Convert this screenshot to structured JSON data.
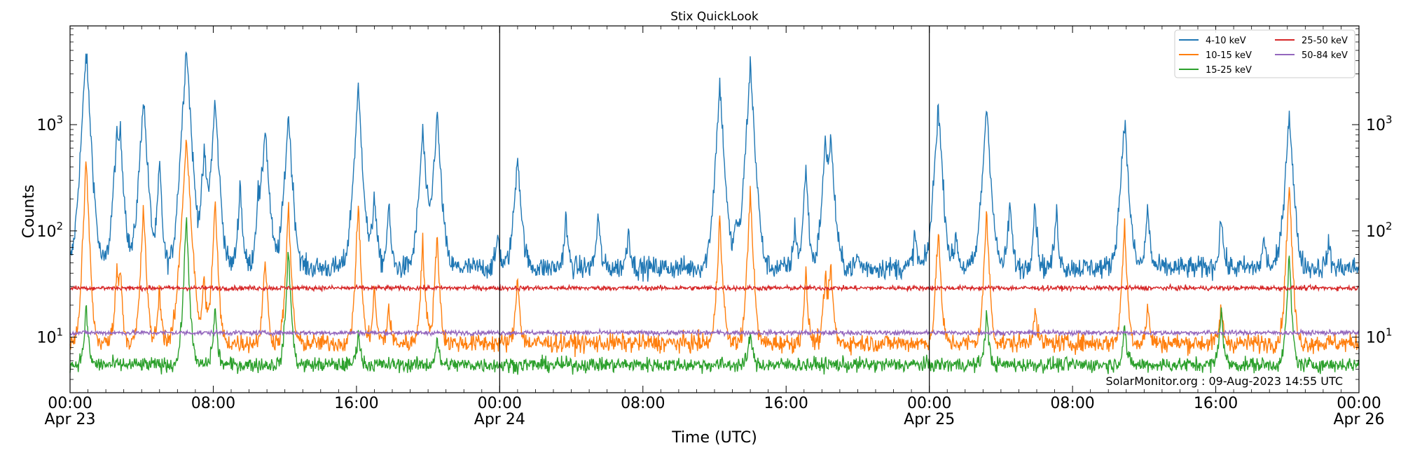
{
  "chart_data": {
    "type": "line",
    "title": "Stix QuickLook",
    "xlabel": "Time (UTC)",
    "ylabel": "Counts",
    "yscale": "log",
    "ylim": [
      3,
      8500
    ],
    "xlim_hours": [
      0,
      72
    ],
    "y_ticks": [
      {
        "value": 10,
        "base": "10",
        "exp": "1"
      },
      {
        "value": 100,
        "base": "10",
        "exp": "2"
      },
      {
        "value": 1000,
        "base": "10",
        "exp": "3"
      }
    ],
    "x_ticks": [
      {
        "hour": 0,
        "time": "00:00",
        "date": "Apr 23"
      },
      {
        "hour": 8,
        "time": "08:00",
        "date": ""
      },
      {
        "hour": 16,
        "time": "16:00",
        "date": ""
      },
      {
        "hour": 24,
        "time": "00:00",
        "date": "Apr 24"
      },
      {
        "hour": 32,
        "time": "08:00",
        "date": ""
      },
      {
        "hour": 40,
        "time": "16:00",
        "date": ""
      },
      {
        "hour": 48,
        "time": "00:00",
        "date": "Apr 25"
      },
      {
        "hour": 56,
        "time": "08:00",
        "date": ""
      },
      {
        "hour": 64,
        "time": "16:00",
        "date": ""
      },
      {
        "hour": 72,
        "time": "00:00",
        "date": "Apr 26"
      }
    ],
    "day_boundaries": [
      24,
      48
    ],
    "annotation": "SolarMonitor.org : 09-Aug-2023 14:55 UTC",
    "legend_position": "top-right",
    "series": [
      {
        "name": "4-10 keV",
        "color": "#1f77b4",
        "baseline": 45,
        "noise": 0.12,
        "peaks": [
          [
            0.9,
            5000
          ],
          [
            2.6,
            600
          ],
          [
            2.8,
            800
          ],
          [
            4.1,
            1900
          ],
          [
            5.0,
            450
          ],
          [
            6.5,
            5800
          ],
          [
            7.5,
            550
          ],
          [
            8.1,
            1700
          ],
          [
            9.5,
            300
          ],
          [
            10.5,
            200
          ],
          [
            10.9,
            1000
          ],
          [
            12.2,
            1300
          ],
          [
            16.1,
            2200
          ],
          [
            17.0,
            250
          ],
          [
            17.8,
            180
          ],
          [
            19.7,
            900
          ],
          [
            20.5,
            1300
          ],
          [
            23.9,
            100
          ],
          [
            25.0,
            550
          ],
          [
            27.7,
            140
          ],
          [
            29.5,
            150
          ],
          [
            31.2,
            110
          ],
          [
            36.3,
            2500
          ],
          [
            37.2,
            130
          ],
          [
            38.0,
            3800
          ],
          [
            40.5,
            120
          ],
          [
            41.1,
            450
          ],
          [
            42.2,
            650
          ],
          [
            42.5,
            700
          ],
          [
            44.0,
            60
          ],
          [
            47.2,
            100
          ],
          [
            48.5,
            1600
          ],
          [
            49.5,
            100
          ],
          [
            51.2,
            1600
          ],
          [
            52.5,
            200
          ],
          [
            53.9,
            200
          ],
          [
            55.1,
            160
          ],
          [
            58.9,
            1200
          ],
          [
            60.2,
            180
          ],
          [
            64.3,
            150
          ],
          [
            66.7,
            90
          ],
          [
            68.1,
            1400
          ],
          [
            70.3,
            80
          ]
        ]
      },
      {
        "name": "10-15 keV",
        "color": "#ff7f0e",
        "baseline": 8.8,
        "noise": 0.1,
        "peaks": [
          [
            0.9,
            480
          ],
          [
            2.6,
            40
          ],
          [
            2.8,
            45
          ],
          [
            4.1,
            180
          ],
          [
            5.0,
            30
          ],
          [
            6.5,
            800
          ],
          [
            7.5,
            40
          ],
          [
            8.1,
            200
          ],
          [
            10.9,
            60
          ],
          [
            12.2,
            170
          ],
          [
            16.1,
            180
          ],
          [
            17.0,
            30
          ],
          [
            17.8,
            20
          ],
          [
            19.7,
            80
          ],
          [
            20.5,
            100
          ],
          [
            25.0,
            40
          ],
          [
            36.3,
            150
          ],
          [
            38.0,
            260
          ],
          [
            41.1,
            40
          ],
          [
            42.2,
            40
          ],
          [
            42.5,
            50
          ],
          [
            48.5,
            110
          ],
          [
            51.2,
            160
          ],
          [
            53.9,
            20
          ],
          [
            58.9,
            120
          ],
          [
            60.2,
            20
          ],
          [
            64.3,
            20
          ],
          [
            68.1,
            300
          ]
        ]
      },
      {
        "name": "15-25 keV",
        "color": "#2ca02c",
        "baseline": 5.5,
        "noise": 0.08,
        "peaks": [
          [
            0.9,
            20
          ],
          [
            6.5,
            140
          ],
          [
            8.1,
            20
          ],
          [
            12.2,
            70
          ],
          [
            16.1,
            12
          ],
          [
            20.5,
            10
          ],
          [
            38.0,
            12
          ],
          [
            51.2,
            18
          ],
          [
            58.9,
            14
          ],
          [
            64.3,
            20
          ],
          [
            68.1,
            60
          ]
        ]
      },
      {
        "name": "25-50 keV",
        "color": "#d62728",
        "baseline": 29,
        "noise": 0.025,
        "peaks": []
      },
      {
        "name": "50-84 keV",
        "color": "#9467bd",
        "baseline": 11,
        "noise": 0.025,
        "peaks": []
      }
    ]
  }
}
